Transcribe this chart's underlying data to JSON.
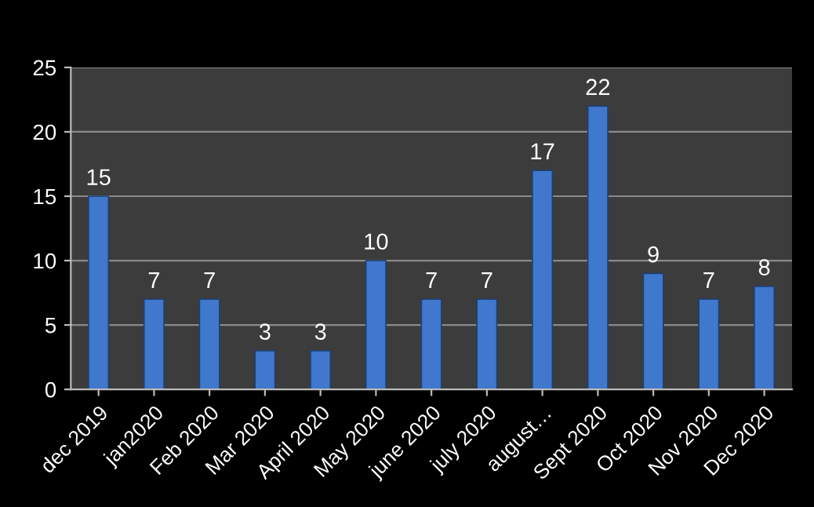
{
  "chart_data": {
    "type": "bar",
    "categories": [
      "dec 2019",
      "jan2020",
      "Feb 2020",
      "Mar 2020",
      "April 2020",
      "May 2020",
      "june 2020",
      "july 2020",
      "august…",
      "Sept 2020",
      "Oct 2020",
      "Nov 2020",
      "Dec 2020"
    ],
    "values": [
      15,
      7,
      7,
      3,
      3,
      10,
      7,
      7,
      17,
      22,
      9,
      7,
      8
    ],
    "color": "#3f78cc",
    "ylim": [
      0,
      25
    ],
    "yticks": [
      0,
      5,
      10,
      15,
      20,
      25
    ],
    "grid": "y",
    "data_labels": true
  }
}
